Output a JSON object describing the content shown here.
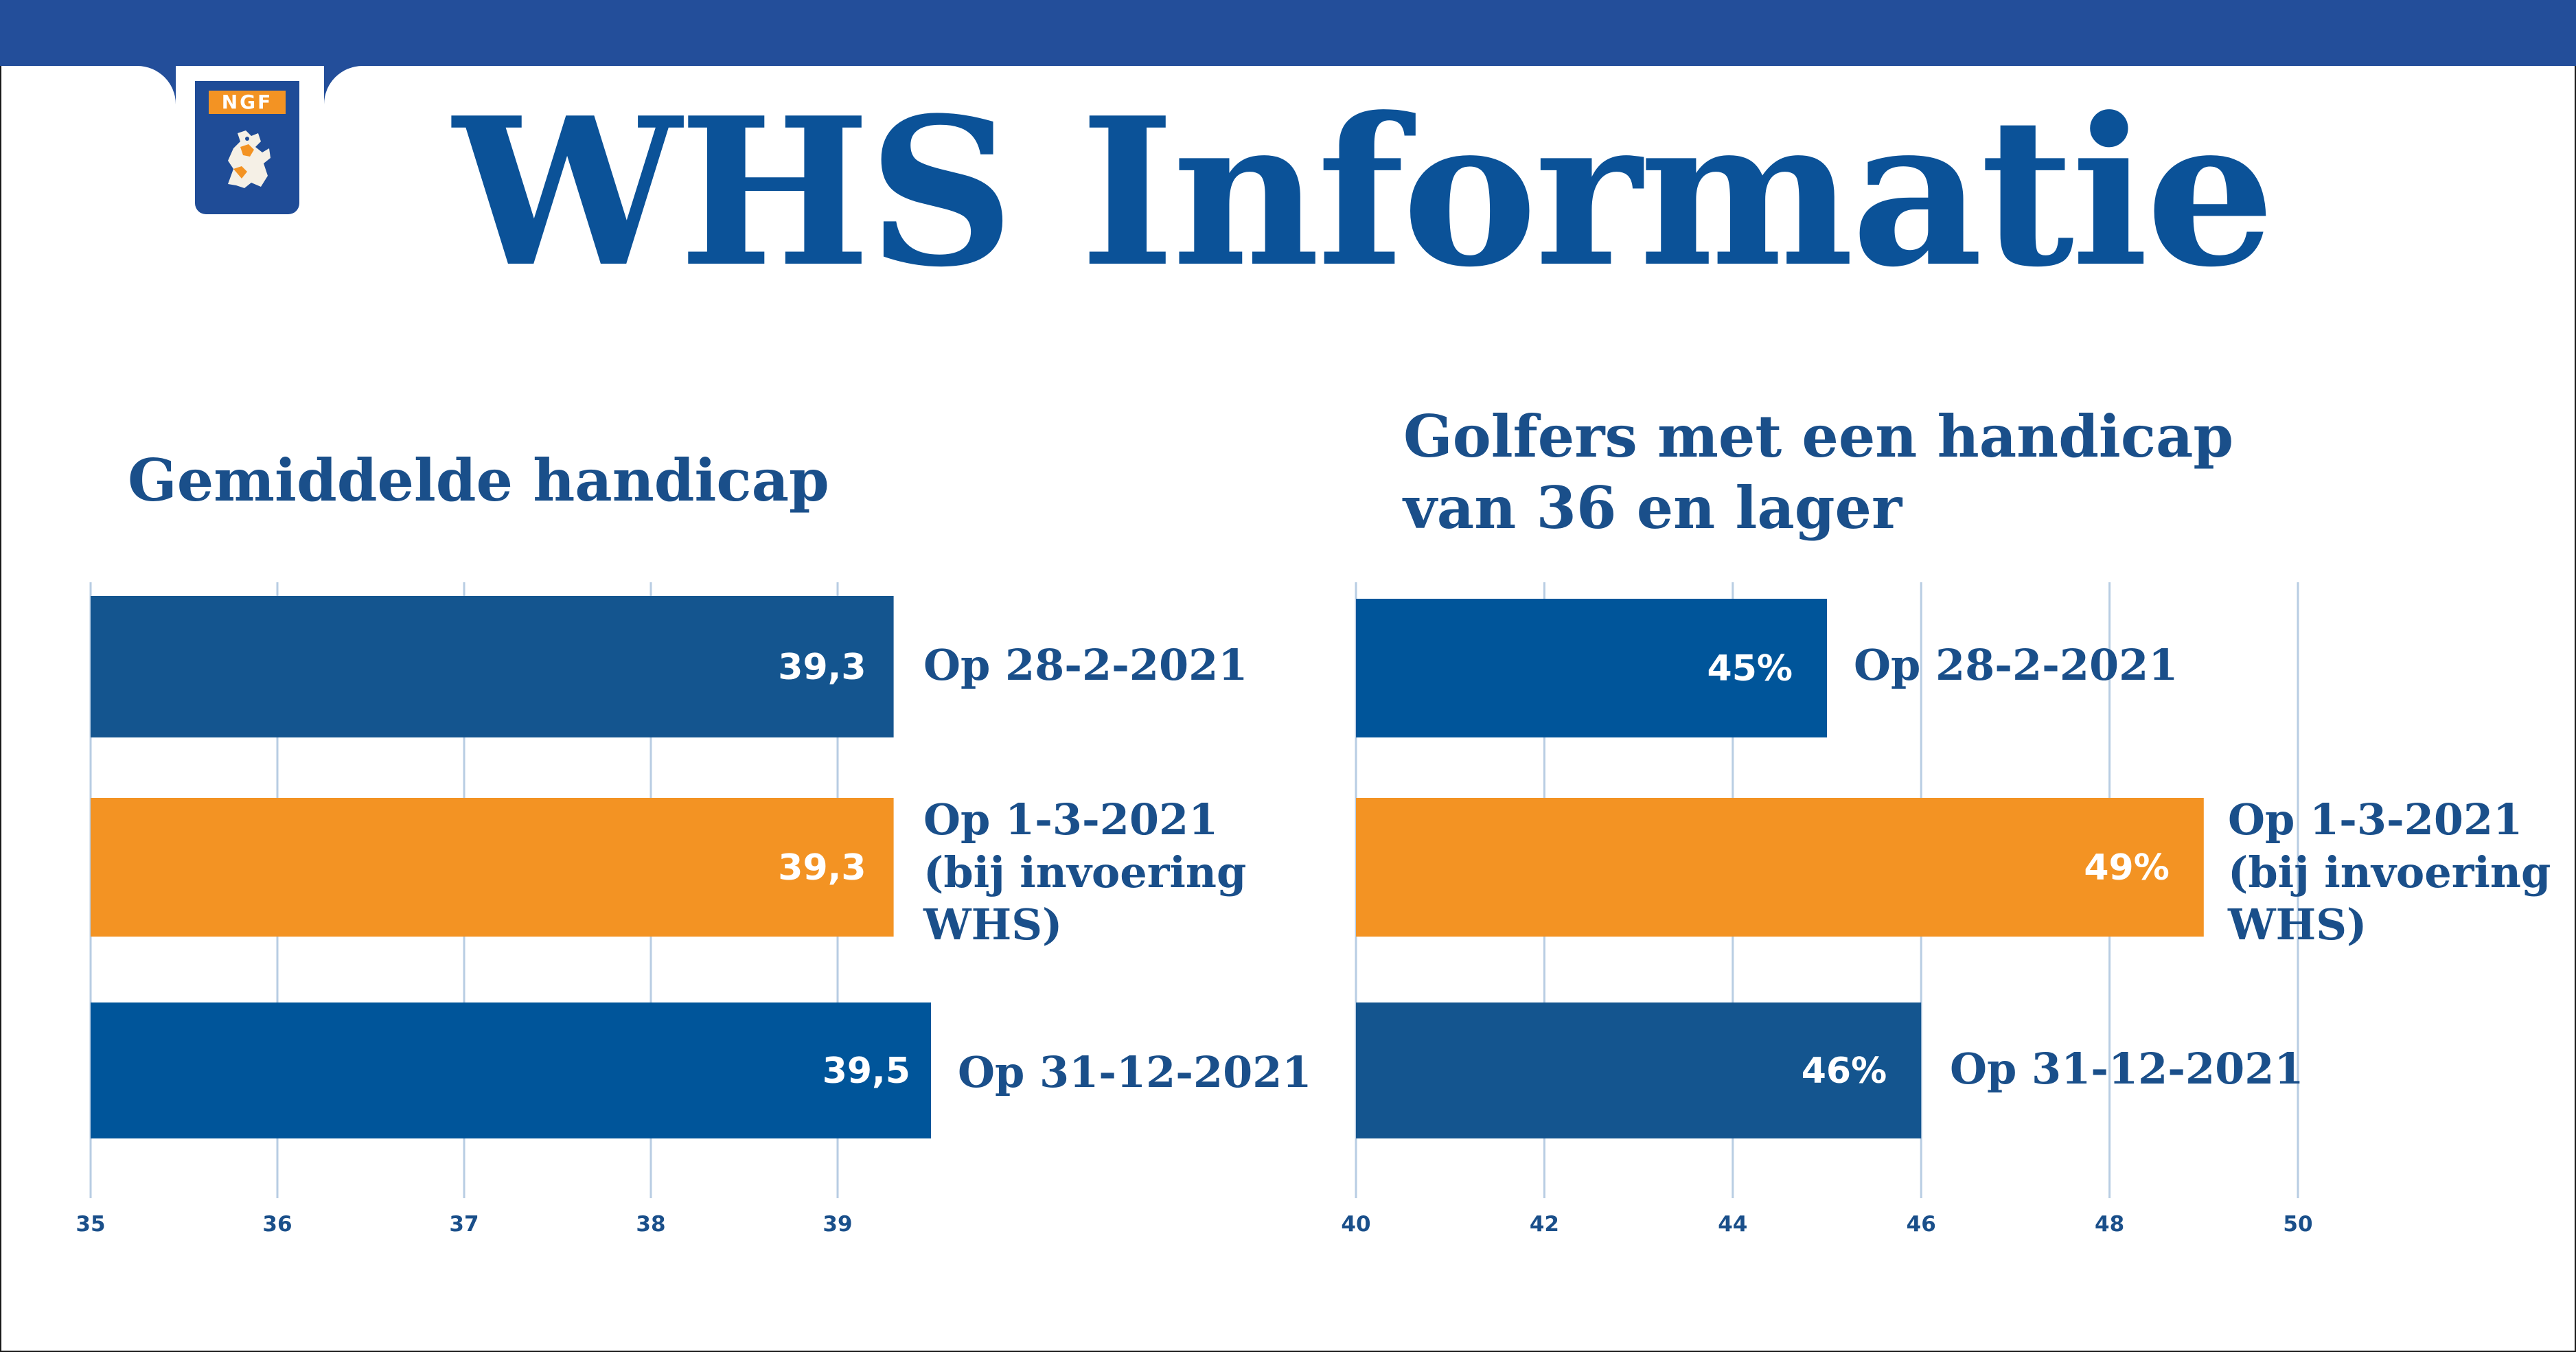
{
  "header": {
    "logo_text": "NGF",
    "title": "WHS Informatie"
  },
  "colors": {
    "topbar": "#234e9a",
    "dark_blue": "#0b5298",
    "navy": "#1a4f8a",
    "bar_dark": "#14558f",
    "bar_blue": "#00559a",
    "orange": "#f39323",
    "grid": "#b8cde3"
  },
  "left_title": "Gemiddelde handicap",
  "right_title": {
    "line1": "Golfers met een handicap",
    "line2": "van 36 en lager"
  },
  "chart_data": [
    {
      "type": "bar",
      "orientation": "horizontal",
      "title": "Gemiddelde handicap",
      "xlim": [
        35,
        39.5
      ],
      "xticks": [
        "35",
        "36",
        "37",
        "38",
        "39"
      ],
      "grid": true,
      "bars": [
        {
          "value": 39.3,
          "value_label": "39,3",
          "category": [
            "Op 28-2-2021"
          ],
          "color": "#14558f"
        },
        {
          "value": 39.3,
          "value_label": "39,3",
          "category": [
            "Op 1-3-2021",
            "(bij invoering",
            "WHS)"
          ],
          "color": "#f39323"
        },
        {
          "value": 39.5,
          "value_label": "39,5",
          "category": [
            "Op 31-12-2021"
          ],
          "color": "#00559a"
        }
      ]
    },
    {
      "type": "bar",
      "orientation": "horizontal",
      "title": "Golfers met een handicap van 36 en lager",
      "xlim": [
        40,
        50
      ],
      "xticks": [
        "40",
        "42",
        "44",
        "46",
        "48",
        "50"
      ],
      "grid": true,
      "bars": [
        {
          "value": 45,
          "value_label": "45%",
          "category": [
            "Op 28-2-2021"
          ],
          "color": "#00559a"
        },
        {
          "value": 49,
          "value_label": "49%",
          "category": [
            "Op 1-3-2021",
            "(bij invoering",
            "WHS)"
          ],
          "color": "#f39323"
        },
        {
          "value": 46,
          "value_label": "46%",
          "category": [
            "Op 31-12-2021"
          ],
          "color": "#14558f"
        }
      ]
    }
  ]
}
